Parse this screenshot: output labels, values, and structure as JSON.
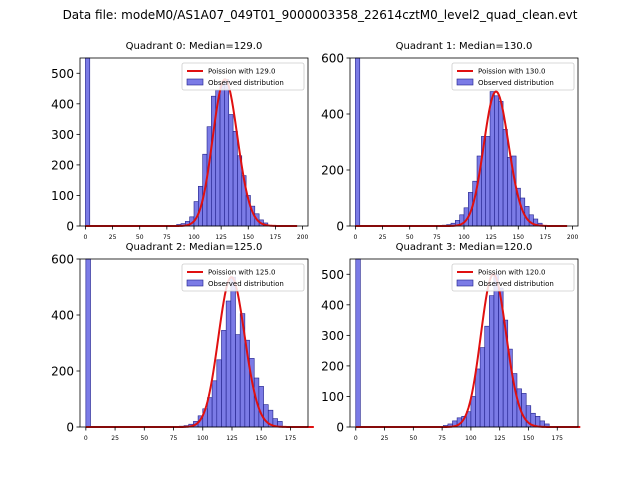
{
  "suptitle": "Data file: modeM0/AS1A07_049T01_9000003358_22614cztM0_level2_quad_clean.evt",
  "colors": {
    "hist_fill": "#7b7be6",
    "hist_edge": "#1f1f8a",
    "fit_line": "#e01010"
  },
  "chart_data": [
    {
      "type": "bar",
      "title": "Quadrant 0: Median=129.0",
      "legend": [
        "Poission with 129.0",
        "Observed distribution"
      ],
      "legend_position": "top-right",
      "xlim": [
        -5,
        205
      ],
      "ylim": [
        0,
        550
      ],
      "xticks": [
        0,
        25,
        50,
        75,
        100,
        125,
        150,
        175,
        200
      ],
      "yticks": [
        0,
        100,
        200,
        300,
        400,
        500
      ],
      "bin_width": 4,
      "mean": 129,
      "bin_starts": [
        0,
        84,
        88,
        92,
        96,
        100,
        104,
        108,
        112,
        116,
        120,
        124,
        128,
        132,
        136,
        140,
        144,
        148,
        152,
        156,
        160,
        164
      ],
      "counts": [
        550,
        5,
        8,
        15,
        30,
        80,
        130,
        235,
        325,
        425,
        445,
        460,
        480,
        365,
        310,
        230,
        165,
        100,
        65,
        40,
        20,
        10
      ]
    },
    {
      "type": "bar",
      "title": "Quadrant 1: Median=130.0",
      "legend": [
        "Poission with 130.0",
        "Observed distribution"
      ],
      "legend_position": "top-right",
      "xlim": [
        -5,
        205
      ],
      "ylim": [
        0,
        600
      ],
      "xticks": [
        0,
        25,
        50,
        75,
        100,
        125,
        150,
        175,
        200
      ],
      "yticks": [
        0,
        200,
        400,
        600
      ],
      "bin_width": 4,
      "mean": 130,
      "bin_starts": [
        0,
        80,
        84,
        88,
        92,
        96,
        100,
        104,
        108,
        112,
        116,
        120,
        124,
        128,
        132,
        136,
        140,
        144,
        148,
        152,
        156,
        160,
        164,
        168
      ],
      "counts": [
        600,
        3,
        5,
        10,
        20,
        40,
        65,
        120,
        160,
        250,
        320,
        320,
        480,
        465,
        445,
        345,
        245,
        250,
        135,
        100,
        70,
        40,
        25,
        10
      ]
    },
    {
      "type": "bar",
      "title": "Quadrant 2: Median=125.0",
      "legend": [
        "Poission with 125.0",
        "Observed distribution"
      ],
      "legend_position": "top-right",
      "xlim": [
        -5,
        190
      ],
      "ylim": [
        0,
        600
      ],
      "xticks": [
        0,
        25,
        50,
        75,
        100,
        125,
        150,
        175
      ],
      "yticks": [
        0,
        200,
        400,
        600
      ],
      "bin_width": 4,
      "mean": 125,
      "bin_starts": [
        0,
        80,
        84,
        88,
        92,
        96,
        100,
        104,
        108,
        112,
        116,
        120,
        124,
        128,
        132,
        136,
        140,
        144,
        148,
        152,
        156,
        160,
        164
      ],
      "counts": [
        600,
        3,
        5,
        10,
        20,
        40,
        65,
        105,
        165,
        240,
        345,
        450,
        535,
        330,
        405,
        310,
        245,
        175,
        145,
        80,
        60,
        30,
        20
      ]
    },
    {
      "type": "bar",
      "title": "Quadrant 3: Median=120.0",
      "legend": [
        "Poission with 120.0",
        "Observed distribution"
      ],
      "legend_position": "top-right",
      "xlim": [
        -5,
        193
      ],
      "ylim": [
        0,
        550
      ],
      "xticks": [
        0,
        25,
        50,
        75,
        100,
        125,
        150,
        175
      ],
      "yticks": [
        0,
        100,
        200,
        300,
        400,
        500
      ],
      "bin_width": 4,
      "mean": 120,
      "bin_starts": [
        0,
        76,
        80,
        84,
        88,
        92,
        96,
        100,
        104,
        108,
        112,
        116,
        120,
        124,
        128,
        132,
        136,
        140,
        144,
        148,
        152,
        156,
        160,
        164
      ],
      "counts": [
        550,
        5,
        10,
        20,
        30,
        35,
        50,
        100,
        190,
        260,
        330,
        430,
        500,
        455,
        350,
        255,
        175,
        125,
        110,
        70,
        45,
        35,
        20,
        10
      ]
    }
  ]
}
